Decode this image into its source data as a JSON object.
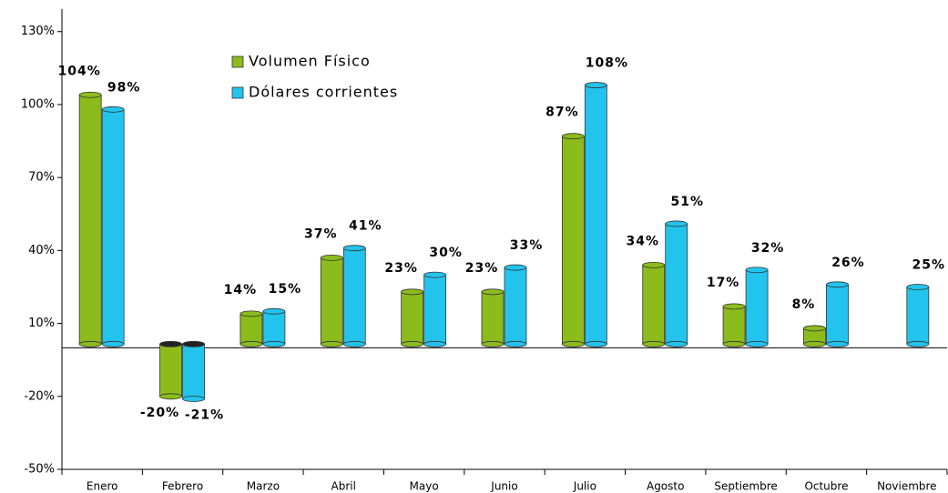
{
  "chart_data": {
    "type": "bar",
    "categories": [
      "Enero",
      "Febrero",
      "Marzo",
      "Abril",
      "Mayo",
      "Junio",
      "Julio",
      "Agosto",
      "Septiembre",
      "Octubre",
      "Noviembre"
    ],
    "series": [
      {
        "name": "Volumen Físico",
        "color": "#8cbc1c",
        "values": [
          104,
          -20,
          14,
          37,
          23,
          23,
          87,
          34,
          17,
          8,
          null
        ],
        "value_labels": [
          "104%",
          "-20%",
          "14%",
          "37%",
          "23%",
          "23%",
          "87%",
          "34%",
          "17%",
          "8%",
          null
        ]
      },
      {
        "name": "Dólares corrientes",
        "color": "#22c4ee",
        "values": [
          98,
          -21,
          15,
          41,
          30,
          33,
          108,
          51,
          32,
          26,
          25
        ],
        "value_labels": [
          "98%",
          "-21%",
          "15%",
          "41%",
          "30%",
          "33%",
          "108%",
          "51%",
          "32%",
          "26%",
          "25%"
        ]
      }
    ],
    "ylim": [
      -50,
      140
    ],
    "yticks": [
      {
        "value": -50,
        "label": "-50%"
      },
      {
        "value": -20,
        "label": "-20%"
      },
      {
        "value": 10,
        "label": "10%"
      },
      {
        "value": 40,
        "label": "40%"
      },
      {
        "value": 70,
        "label": "70%"
      },
      {
        "value": 100,
        "label": "100%"
      },
      {
        "value": 130,
        "label": "130%"
      }
    ],
    "legend": "top-left"
  }
}
